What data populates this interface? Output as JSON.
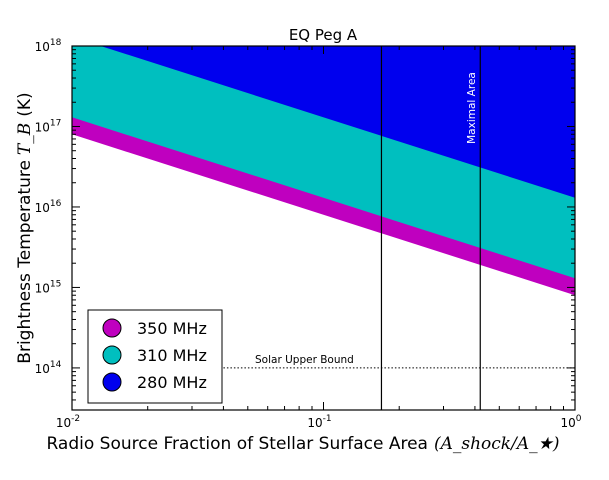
{
  "chart_data": {
    "type": "area",
    "title": "EQ Peg A",
    "xlabel": "Radio Source Fraction of Stellar Surface Area",
    "xlabel_math": "(A_shock/A_★)",
    "ylabel": "Brightness Temperature",
    "ylabel_math": "T_B",
    "ylabel_unit": "(K)",
    "x_scale": "log",
    "y_scale": "log",
    "xlim": [
      0.01,
      1
    ],
    "ylim": [
      30000000000000.0,
      1e+18
    ],
    "x_ticks": [
      {
        "value": 0.01,
        "base": "10",
        "exp": "-2"
      },
      {
        "value": 0.1,
        "base": "10",
        "exp": "-1"
      },
      {
        "value": 1,
        "base": "10",
        "exp": "0"
      }
    ],
    "y_ticks": [
      {
        "value": 100000000000000.0,
        "base": "10",
        "exp": "14"
      },
      {
        "value": 1000000000000000.0,
        "base": "10",
        "exp": "15"
      },
      {
        "value": 1e+16,
        "base": "10",
        "exp": "16"
      },
      {
        "value": 1e+17,
        "base": "10",
        "exp": "17"
      },
      {
        "value": 1e+18,
        "base": "10",
        "exp": "18"
      }
    ],
    "grid": false,
    "legend_position": "lower-left",
    "series": [
      {
        "name": "280 MHz",
        "color": "#0000ee",
        "boundary_at_x1": 1.3e+16,
        "power_index": -1
      },
      {
        "name": "310 MHz",
        "color": "#00bfbf",
        "boundary_at_x1": 1300000000000000.0,
        "power_index": -1
      },
      {
        "name": "350 MHz",
        "color": "#bf00bf",
        "boundary_at_x1": 800000000000000.0,
        "power_index": -1
      }
    ],
    "vertical_lines": [
      {
        "x": 0.17
      },
      {
        "x": 0.42,
        "label": "Maximal Area"
      }
    ],
    "horizontal_lines": [
      {
        "y": 100000000000000.0,
        "x_start": 0.04,
        "label": "Solar Upper Bound",
        "style": "dotted"
      }
    ]
  }
}
